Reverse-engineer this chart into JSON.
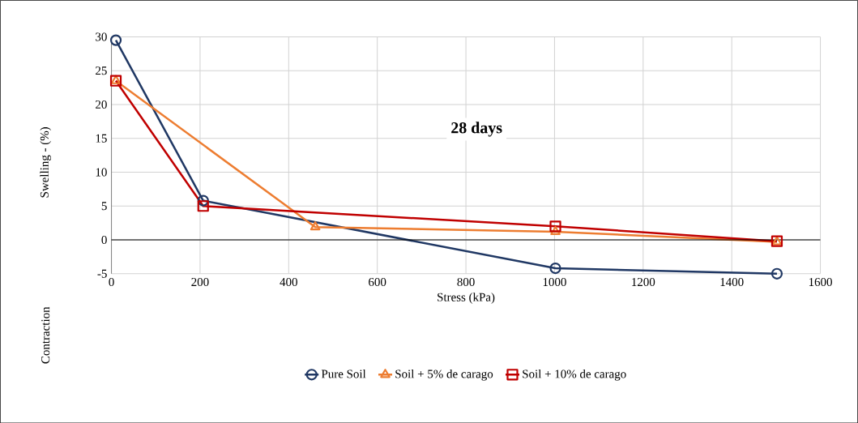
{
  "chart_data": {
    "type": "line",
    "xlabel": "Stress (kPa)",
    "ylabel": "Swelling -  (%)",
    "annotations": [
      "28 days",
      "Contraction"
    ],
    "series": [
      {
        "name": "Pure Soil",
        "color": "#203864",
        "marker": "circle",
        "x": [
          10,
          207,
          1002,
          1502
        ],
        "values": [
          29.5,
          5.8,
          -4.2,
          -5
        ]
      },
      {
        "name": "Soil + 5% de carago",
        "color": "#ed7d31",
        "marker": "triangle",
        "x": [
          10,
          460,
          1002,
          1502
        ],
        "values": [
          23.5,
          1.9,
          1.2,
          -0.3
        ]
      },
      {
        "name": "Soil + 10% de carago",
        "color": "#c00000",
        "marker": "square",
        "x": [
          10,
          207,
          1002,
          1502
        ],
        "values": [
          23.5,
          5,
          2,
          -0.2
        ]
      }
    ],
    "xlim": [
      0,
      1600
    ],
    "ylim": [
      -5,
      30
    ],
    "xticks": [
      0,
      200,
      400,
      600,
      800,
      1000,
      1200,
      1400,
      1600
    ],
    "yticks": [
      -5,
      0,
      5,
      10,
      15,
      20,
      25,
      30
    ],
    "grid": true,
    "legend": "bottom",
    "line_style": "solid"
  }
}
